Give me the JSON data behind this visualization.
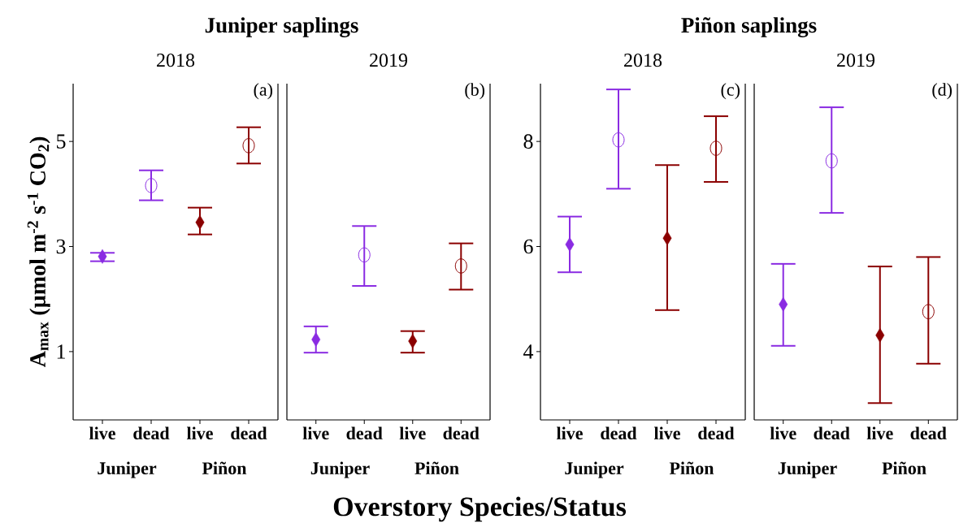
{
  "chart_data": [
    {
      "type": "scatter",
      "title": "Juniper saplings",
      "subtitle": "2018",
      "ylabel": "A$_{max}$ (µmol m$^{-2}$ s$^{-1}$ CO$_{2}$)",
      "xlabel": "Overstory Species/Status",
      "categories": [
        "live",
        "dead",
        "live",
        "dead"
      ],
      "ylim": [
        -0.3,
        6.1
      ],
      "yticks": [
        1,
        3,
        5
      ],
      "annotations": [
        "(a)",
        "Juniper",
        "Piñon"
      ],
      "series": [
        {
          "marker": "diamond",
          "colors": [
            "#8a2be2",
            "#8a2be2",
            "#8b0000",
            "#8b0000"
          ],
          "values": [
            2.81,
            null,
            3.46,
            null
          ],
          "errors": [
            [
              2.72,
              2.88
            ],
            null,
            [
              3.23,
              3.74
            ],
            null
          ]
        },
        {
          "marker": "circle",
          "colors": [
            "#8a2be2",
            "#8a2be2",
            "#8b0000",
            "#8b0000"
          ],
          "values": [
            null,
            4.16,
            null,
            4.92
          ],
          "errors": [
            null,
            [
              3.88,
              4.45
            ],
            null,
            [
              4.58,
              5.27
            ]
          ]
        }
      ]
    },
    {
      "type": "scatter",
      "subtitle": "2019",
      "categories": [
        "live",
        "dead",
        "live",
        "dead"
      ],
      "ylim": [
        -0.3,
        6.1
      ],
      "yticks": [
        1,
        3,
        5
      ],
      "tick_labels": "x",
      "annotations": [
        "(b)",
        "Juniper",
        "Piñon"
      ],
      "series": [
        {
          "marker": "diamond",
          "colors": [
            "#8a2be2",
            "#8a2be2",
            "#8b0000",
            "#8b0000"
          ],
          "values": [
            1.23,
            null,
            1.2,
            null
          ],
          "errors": [
            [
              0.98,
              1.48
            ],
            null,
            [
              0.98,
              1.39
            ],
            null
          ]
        },
        {
          "marker": "circle",
          "colors": [
            "#8a2be2",
            "#8a2be2",
            "#8b0000",
            "#8b0000"
          ],
          "values": [
            null,
            2.84,
            null,
            2.63
          ],
          "errors": [
            null,
            [
              2.25,
              3.39
            ],
            null,
            [
              2.18,
              3.06
            ]
          ]
        }
      ]
    },
    {
      "type": "scatter",
      "title": "Piñon saplings",
      "subtitle": "2018",
      "categories": [
        "live",
        "dead",
        "live",
        "dead"
      ],
      "ylim": [
        2.7,
        9.1
      ],
      "yticks": [
        4,
        6,
        8
      ],
      "annotations": [
        "(c)",
        "Juniper",
        "Piñon"
      ],
      "series": [
        {
          "marker": "diamond",
          "colors": [
            "#8a2be2",
            "#8a2be2",
            "#8b0000",
            "#8b0000"
          ],
          "values": [
            6.04,
            null,
            6.16,
            null
          ],
          "errors": [
            [
              5.51,
              6.57
            ],
            null,
            [
              4.79,
              7.55
            ],
            null
          ]
        },
        {
          "marker": "circle",
          "colors": [
            "#8a2be2",
            "#8a2be2",
            "#8b0000",
            "#8b0000"
          ],
          "values": [
            null,
            8.03,
            null,
            7.87
          ],
          "errors": [
            null,
            [
              7.1,
              8.99
            ],
            null,
            [
              7.23,
              8.48
            ]
          ]
        }
      ]
    },
    {
      "type": "scatter",
      "subtitle": "2019",
      "categories": [
        "live",
        "dead",
        "live",
        "dead"
      ],
      "ylim": [
        2.7,
        9.1
      ],
      "yticks": [
        4,
        6,
        8
      ],
      "tick_labels": "x",
      "annotations": [
        "(d)",
        "Juniper",
        "Piñon"
      ],
      "series": [
        {
          "marker": "diamond",
          "colors": [
            "#8a2be2",
            "#8a2be2",
            "#8b0000",
            "#8b0000"
          ],
          "values": [
            4.9,
            null,
            4.31,
            null
          ],
          "errors": [
            [
              4.11,
              5.67
            ],
            null,
            [
              3.02,
              5.62
            ],
            null
          ]
        },
        {
          "marker": "circle",
          "colors": [
            "#8a2be2",
            "#8a2be2",
            "#8b0000",
            "#8b0000"
          ],
          "values": [
            null,
            7.63,
            null,
            4.76
          ],
          "errors": [
            null,
            [
              6.64,
              8.65
            ],
            null,
            [
              3.77,
              5.8
            ]
          ]
        }
      ]
    }
  ]
}
